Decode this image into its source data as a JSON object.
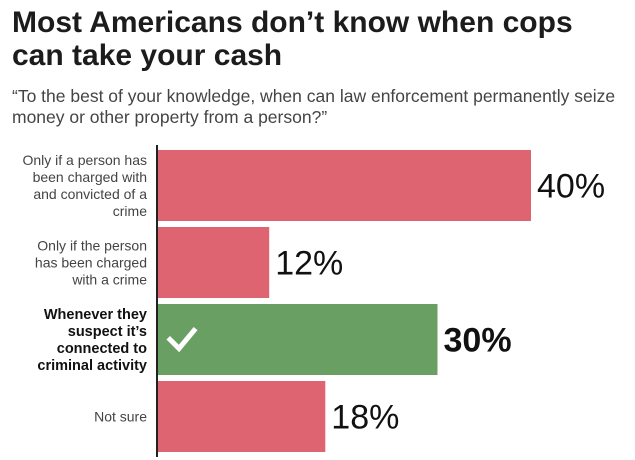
{
  "chart_data": {
    "type": "bar",
    "orientation": "horizontal",
    "title": "Most Americans don’t know when cops can take your cash",
    "subtitle": "“To the best of your knowledge, when can law enforcement permanently seize money or other property from a person?”",
    "categories": [
      [
        "Only if a person has",
        "been charged with",
        "and convicted of a",
        "crime"
      ],
      [
        "Only if the person",
        "has been charged",
        "with a crime"
      ],
      [
        "Whenever they",
        "suspect it’s",
        "connected to",
        "criminal activity"
      ],
      [
        "Not sure"
      ]
    ],
    "values": [
      40,
      12,
      30,
      18
    ],
    "value_labels": [
      "40%",
      "12%",
      "30%",
      "18%"
    ],
    "highlight_index": 2,
    "highlight_icon": "checkmark-icon",
    "colors": {
      "bar": "#dd6470",
      "highlight": "#6a9f64",
      "axis": "#222222"
    },
    "xlim": [
      0,
      40
    ]
  }
}
